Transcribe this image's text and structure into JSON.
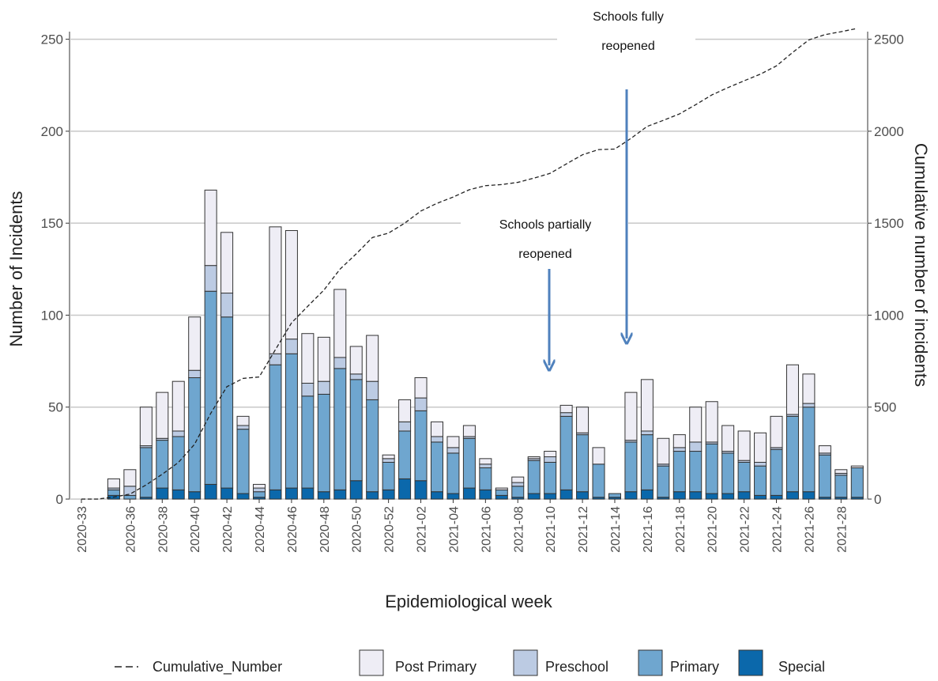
{
  "chart_data": {
    "type": "bar",
    "stacked": true,
    "grid": true,
    "xlabel": "Epidemiological week",
    "ylabel": "Number of Incidents",
    "y2label": "Cumulative number of incidents",
    "categories": [
      "2020-33",
      null,
      null,
      "2020-36",
      null,
      "2020-38",
      null,
      "2020-40",
      null,
      "2020-42",
      null,
      "2020-44",
      null,
      "2020-46",
      null,
      "2020-48",
      null,
      "2020-50",
      null,
      "2020-52",
      null,
      "2021-02",
      null,
      "2021-04",
      null,
      "2021-06",
      null,
      "2021-08",
      null,
      "2021-10",
      null,
      "2021-12",
      null,
      "2021-14",
      null,
      "2021-16",
      null,
      "2021-18",
      null,
      "2021-20",
      null,
      "2021-22",
      null,
      "2021-24",
      null,
      "2021-26",
      null,
      "2021-28",
      null
    ],
    "ylim": [
      0,
      255
    ],
    "yticks": [
      0,
      50,
      100,
      150,
      200,
      250
    ],
    "y2lim": [
      0,
      2550
    ],
    "y2ticks": [
      0,
      500,
      1000,
      1500,
      2000,
      2500
    ],
    "series": [
      {
        "name": "Cumulative_Number",
        "type": "line",
        "axis": "y2",
        "dashed": true,
        "color": "#222222",
        "values": [
          0,
          0,
          11,
          27,
          77,
          135,
          199,
          298,
          466,
          611,
          656,
          664,
          812,
          958,
          1048,
          1136,
          1250,
          1333,
          1422,
          1446,
          1500,
          1566,
          1608,
          1642,
          1682,
          1704,
          1710,
          1722,
          1745,
          1771,
          1822,
          1872,
          1900,
          1903,
          1961,
          2026,
          2059,
          2094,
          2144,
          2197,
          2237,
          2274,
          2310,
          2355,
          2428,
          2496,
          2525,
          2541,
          2559
        ]
      },
      {
        "name": "Post Primary",
        "color": "#eeedf5",
        "values": [
          0,
          0,
          5,
          9,
          21,
          25,
          27,
          29,
          41,
          33,
          5,
          2,
          69,
          59,
          27,
          24,
          37,
          15,
          25,
          2,
          12,
          11,
          8,
          6,
          6,
          3,
          1,
          3,
          1,
          3,
          4,
          14,
          9,
          0,
          26,
          28,
          14,
          7,
          19,
          22,
          14,
          16,
          16,
          17,
          27,
          16,
          4,
          2,
          1
        ]
      },
      {
        "name": "Preschool",
        "color": "#bccbe3",
        "values": [
          0,
          0,
          1,
          5,
          1,
          1,
          3,
          4,
          14,
          13,
          2,
          2,
          6,
          8,
          7,
          7,
          6,
          3,
          10,
          2,
          5,
          7,
          3,
          3,
          1,
          2,
          0,
          2,
          1,
          3,
          2,
          1,
          0,
          0,
          1,
          2,
          1,
          2,
          5,
          1,
          1,
          1,
          2,
          1,
          1,
          2,
          1,
          1,
          0
        ]
      },
      {
        "name": "Primary",
        "color": "#6fa6cf",
        "values": [
          0,
          0,
          3,
          2,
          27,
          26,
          29,
          62,
          105,
          93,
          35,
          3,
          68,
          73,
          50,
          53,
          66,
          55,
          50,
          15,
          26,
          38,
          27,
          22,
          27,
          12,
          3,
          6,
          18,
          17,
          40,
          31,
          18,
          2,
          27,
          30,
          17,
          22,
          22,
          27,
          22,
          16,
          16,
          25,
          41,
          46,
          23,
          12,
          16
        ]
      },
      {
        "name": "Special",
        "color": "#0b68ab",
        "values": [
          0,
          0,
          2,
          0,
          1,
          6,
          5,
          4,
          8,
          6,
          3,
          1,
          5,
          6,
          6,
          4,
          5,
          10,
          4,
          5,
          11,
          10,
          4,
          3,
          6,
          5,
          2,
          1,
          3,
          3,
          5,
          4,
          1,
          1,
          4,
          5,
          1,
          4,
          4,
          3,
          3,
          4,
          2,
          2,
          4,
          4,
          1,
          1,
          1
        ]
      }
    ],
    "annotations": [
      {
        "lines": [
          "Schools partially",
          "reopened"
        ]
      },
      {
        "lines": [
          "Schools fully",
          "reopened"
        ]
      }
    ]
  }
}
